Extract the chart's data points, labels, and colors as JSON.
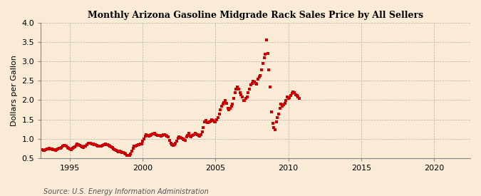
{
  "title": "Monthly Arizona Gasoline Midgrade Rack Sales Price by All Sellers",
  "ylabel": "Dollars per Gallon",
  "source": "Source: U.S. Energy Information Administration",
  "background_color": "#faebd7",
  "dot_color": "#cc0000",
  "xlim": [
    1993.0,
    2022.5
  ],
  "ylim": [
    0.5,
    4.0
  ],
  "yticks": [
    0.5,
    1.0,
    1.5,
    2.0,
    2.5,
    3.0,
    3.5,
    4.0
  ],
  "xticks": [
    1995,
    2000,
    2005,
    2010,
    2015,
    2020
  ],
  "data": [
    [
      1993.0,
      0.72
    ],
    [
      1993.083,
      0.71
    ],
    [
      1993.167,
      0.7
    ],
    [
      1993.25,
      0.7
    ],
    [
      1993.333,
      0.71
    ],
    [
      1993.417,
      0.73
    ],
    [
      1993.5,
      0.74
    ],
    [
      1993.583,
      0.75
    ],
    [
      1993.667,
      0.74
    ],
    [
      1993.75,
      0.73
    ],
    [
      1993.833,
      0.72
    ],
    [
      1993.917,
      0.71
    ],
    [
      1994.0,
      0.7
    ],
    [
      1994.083,
      0.71
    ],
    [
      1994.167,
      0.73
    ],
    [
      1994.25,
      0.75
    ],
    [
      1994.333,
      0.76
    ],
    [
      1994.417,
      0.78
    ],
    [
      1994.5,
      0.81
    ],
    [
      1994.583,
      0.83
    ],
    [
      1994.667,
      0.82
    ],
    [
      1994.75,
      0.8
    ],
    [
      1994.833,
      0.78
    ],
    [
      1994.917,
      0.76
    ],
    [
      1995.0,
      0.73
    ],
    [
      1995.083,
      0.72
    ],
    [
      1995.167,
      0.75
    ],
    [
      1995.25,
      0.77
    ],
    [
      1995.333,
      0.79
    ],
    [
      1995.417,
      0.83
    ],
    [
      1995.5,
      0.86
    ],
    [
      1995.583,
      0.84
    ],
    [
      1995.667,
      0.83
    ],
    [
      1995.75,
      0.81
    ],
    [
      1995.833,
      0.79
    ],
    [
      1995.917,
      0.77
    ],
    [
      1996.0,
      0.8
    ],
    [
      1996.083,
      0.81
    ],
    [
      1996.167,
      0.85
    ],
    [
      1996.25,
      0.89
    ],
    [
      1996.333,
      0.89
    ],
    [
      1996.417,
      0.88
    ],
    [
      1996.5,
      0.87
    ],
    [
      1996.583,
      0.86
    ],
    [
      1996.667,
      0.85
    ],
    [
      1996.75,
      0.84
    ],
    [
      1996.833,
      0.83
    ],
    [
      1996.917,
      0.81
    ],
    [
      1997.0,
      0.8
    ],
    [
      1997.083,
      0.81
    ],
    [
      1997.167,
      0.8
    ],
    [
      1997.25,
      0.82
    ],
    [
      1997.333,
      0.84
    ],
    [
      1997.417,
      0.86
    ],
    [
      1997.5,
      0.85
    ],
    [
      1997.583,
      0.84
    ],
    [
      1997.667,
      0.83
    ],
    [
      1997.75,
      0.81
    ],
    [
      1997.833,
      0.79
    ],
    [
      1997.917,
      0.77
    ],
    [
      1998.0,
      0.74
    ],
    [
      1998.083,
      0.72
    ],
    [
      1998.167,
      0.7
    ],
    [
      1998.25,
      0.68
    ],
    [
      1998.333,
      0.67
    ],
    [
      1998.417,
      0.68
    ],
    [
      1998.5,
      0.67
    ],
    [
      1998.583,
      0.65
    ],
    [
      1998.667,
      0.64
    ],
    [
      1998.75,
      0.62
    ],
    [
      1998.833,
      0.6
    ],
    [
      1998.917,
      0.57
    ],
    [
      1999.0,
      0.56
    ],
    [
      1999.083,
      0.57
    ],
    [
      1999.167,
      0.61
    ],
    [
      1999.25,
      0.68
    ],
    [
      1999.333,
      0.75
    ],
    [
      1999.417,
      0.8
    ],
    [
      1999.5,
      0.81
    ],
    [
      1999.583,
      0.83
    ],
    [
      1999.667,
      0.84
    ],
    [
      1999.75,
      0.85
    ],
    [
      1999.833,
      0.86
    ],
    [
      1999.917,
      0.87
    ],
    [
      2000.0,
      0.94
    ],
    [
      2000.083,
      1.0
    ],
    [
      2000.167,
      1.06
    ],
    [
      2000.25,
      1.11
    ],
    [
      2000.333,
      1.09
    ],
    [
      2000.417,
      1.07
    ],
    [
      2000.5,
      1.08
    ],
    [
      2000.583,
      1.1
    ],
    [
      2000.667,
      1.12
    ],
    [
      2000.75,
      1.13
    ],
    [
      2000.833,
      1.14
    ],
    [
      2000.917,
      1.11
    ],
    [
      2001.0,
      1.08
    ],
    [
      2001.083,
      1.09
    ],
    [
      2001.167,
      1.08
    ],
    [
      2001.25,
      1.07
    ],
    [
      2001.333,
      1.09
    ],
    [
      2001.417,
      1.11
    ],
    [
      2001.5,
      1.1
    ],
    [
      2001.583,
      1.09
    ],
    [
      2001.667,
      1.07
    ],
    [
      2001.75,
      1.05
    ],
    [
      2001.833,
      0.96
    ],
    [
      2001.917,
      0.88
    ],
    [
      2002.0,
      0.85
    ],
    [
      2002.083,
      0.83
    ],
    [
      2002.167,
      0.85
    ],
    [
      2002.25,
      0.89
    ],
    [
      2002.333,
      0.94
    ],
    [
      2002.417,
      1.01
    ],
    [
      2002.5,
      1.04
    ],
    [
      2002.583,
      1.03
    ],
    [
      2002.667,
      1.02
    ],
    [
      2002.75,
      0.99
    ],
    [
      2002.833,
      0.97
    ],
    [
      2002.917,
      0.96
    ],
    [
      2003.0,
      1.04
    ],
    [
      2003.083,
      1.09
    ],
    [
      2003.167,
      1.14
    ],
    [
      2003.25,
      1.07
    ],
    [
      2003.333,
      1.05
    ],
    [
      2003.417,
      1.09
    ],
    [
      2003.5,
      1.11
    ],
    [
      2003.583,
      1.14
    ],
    [
      2003.667,
      1.12
    ],
    [
      2003.75,
      1.11
    ],
    [
      2003.833,
      1.09
    ],
    [
      2003.917,
      1.07
    ],
    [
      2004.0,
      1.11
    ],
    [
      2004.083,
      1.17
    ],
    [
      2004.167,
      1.29
    ],
    [
      2004.25,
      1.44
    ],
    [
      2004.333,
      1.47
    ],
    [
      2004.417,
      1.42
    ],
    [
      2004.5,
      1.41
    ],
    [
      2004.583,
      1.44
    ],
    [
      2004.667,
      1.46
    ],
    [
      2004.75,
      1.49
    ],
    [
      2004.833,
      1.47
    ],
    [
      2004.917,
      1.43
    ],
    [
      2005.0,
      1.44
    ],
    [
      2005.083,
      1.49
    ],
    [
      2005.167,
      1.54
    ],
    [
      2005.25,
      1.64
    ],
    [
      2005.333,
      1.74
    ],
    [
      2005.417,
      1.84
    ],
    [
      2005.5,
      1.89
    ],
    [
      2005.583,
      1.94
    ],
    [
      2005.667,
      1.99
    ],
    [
      2005.75,
      1.91
    ],
    [
      2005.833,
      1.79
    ],
    [
      2005.917,
      1.74
    ],
    [
      2006.0,
      1.79
    ],
    [
      2006.083,
      1.84
    ],
    [
      2006.167,
      1.89
    ],
    [
      2006.25,
      2.04
    ],
    [
      2006.333,
      2.19
    ],
    [
      2006.417,
      2.29
    ],
    [
      2006.5,
      2.34
    ],
    [
      2006.583,
      2.29
    ],
    [
      2006.667,
      2.19
    ],
    [
      2006.75,
      2.14
    ],
    [
      2006.833,
      2.09
    ],
    [
      2006.917,
      1.99
    ],
    [
      2007.0,
      1.99
    ],
    [
      2007.083,
      2.04
    ],
    [
      2007.167,
      2.09
    ],
    [
      2007.25,
      2.19
    ],
    [
      2007.333,
      2.29
    ],
    [
      2007.417,
      2.39
    ],
    [
      2007.5,
      2.44
    ],
    [
      2007.583,
      2.49
    ],
    [
      2007.667,
      2.47
    ],
    [
      2007.75,
      2.44
    ],
    [
      2007.833,
      2.41
    ],
    [
      2007.917,
      2.54
    ],
    [
      2008.0,
      2.59
    ],
    [
      2008.083,
      2.64
    ],
    [
      2008.167,
      2.79
    ],
    [
      2008.25,
      2.94
    ],
    [
      2008.333,
      3.09
    ],
    [
      2008.417,
      3.19
    ],
    [
      2008.5,
      3.56
    ],
    [
      2008.583,
      3.2
    ],
    [
      2008.667,
      2.79
    ],
    [
      2008.75,
      2.34
    ],
    [
      2008.833,
      1.69
    ],
    [
      2008.917,
      1.39
    ],
    [
      2009.0,
      1.29
    ],
    [
      2009.083,
      1.24
    ],
    [
      2009.167,
      1.44
    ],
    [
      2009.25,
      1.54
    ],
    [
      2009.333,
      1.64
    ],
    [
      2009.417,
      1.79
    ],
    [
      2009.5,
      1.89
    ],
    [
      2009.583,
      1.84
    ],
    [
      2009.667,
      1.87
    ],
    [
      2009.75,
      1.91
    ],
    [
      2009.833,
      1.99
    ],
    [
      2009.917,
      2.09
    ],
    [
      2010.0,
      2.04
    ],
    [
      2010.083,
      2.07
    ],
    [
      2010.167,
      2.11
    ],
    [
      2010.25,
      2.17
    ],
    [
      2010.333,
      2.21
    ],
    [
      2010.417,
      2.19
    ],
    [
      2010.5,
      2.14
    ],
    [
      2010.583,
      2.11
    ],
    [
      2010.667,
      2.09
    ],
    [
      2010.75,
      2.04
    ]
  ]
}
